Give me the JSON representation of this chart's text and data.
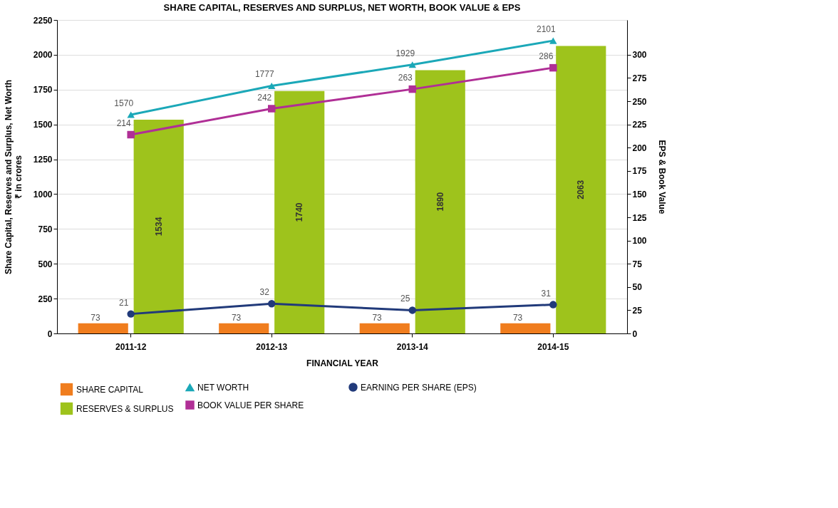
{
  "chart_data": {
    "type": "bar",
    "title": "SHARE CAPITAL, RESERVES AND SURPLUS, NET WORTH, BOOK VALUE & EPS",
    "xlabel": "FINANCIAL YEAR",
    "ylabel": "Share Capital, Reserves and Surplus, Net Worth\n₹ in crores",
    "y2label": "EPS & Book Value",
    "categories": [
      "2011-12",
      "2012-13",
      "2013-14",
      "2014-15"
    ],
    "ylim": [
      0,
      2250
    ],
    "yticks": [
      0,
      250,
      500,
      750,
      1000,
      1250,
      1500,
      1750,
      2000,
      2250
    ],
    "y2lim": [
      0,
      337.5
    ],
    "y2ticks": [
      0,
      25,
      50,
      75,
      100,
      125,
      150,
      175,
      200,
      225,
      250,
      275,
      300
    ],
    "grid": "y",
    "legend": "bottom",
    "data_labels": true,
    "series": [
      {
        "name": "SHARE CAPITAL",
        "color": "#f07d1e",
        "values": [
          73,
          73,
          73,
          73
        ]
      },
      {
        "name": "RESERVES & SURPLUS",
        "color": "#9ec31c",
        "values": [
          1534,
          1740,
          1890,
          2063
        ]
      },
      {
        "name": "NET WORTH",
        "type": "line",
        "marker": "triangle",
        "color": "#1ba8b8",
        "values": [
          1570,
          1777,
          1929,
          2101
        ]
      },
      {
        "name": "BOOK VALUE PER SHARE",
        "type": "line",
        "axis": "y2",
        "marker": "square",
        "color": "#b02f96",
        "values": [
          214,
          242,
          263,
          286
        ]
      },
      {
        "name": "EARNING PER SHARE (EPS)",
        "type": "line",
        "axis": "y2",
        "marker": "circle",
        "color": "#213a7a",
        "values": [
          21,
          32,
          25,
          31
        ]
      }
    ]
  }
}
